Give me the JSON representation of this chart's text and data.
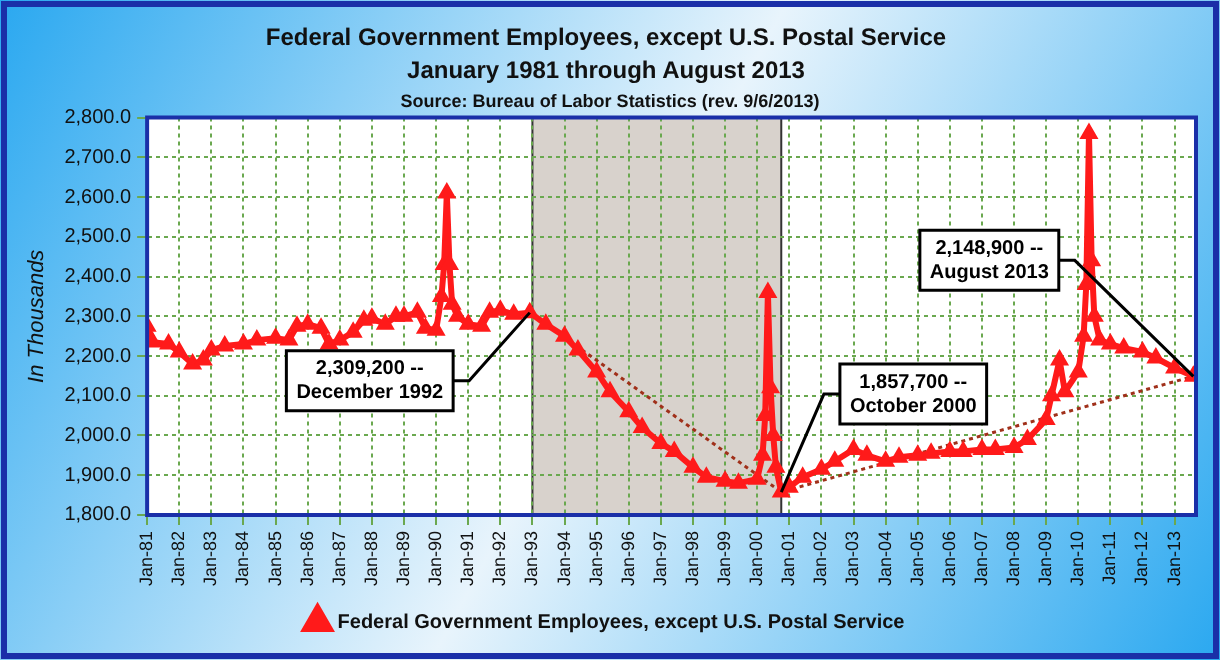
{
  "chart_data": {
    "type": "line",
    "title": "Federal Government Employees, except U.S. Postal Service",
    "subtitle": "January 1981 through August 2013",
    "ylabel": "In Thousands",
    "annotations": [
      "Source: Bureau of Labor Statistics (rev. 9/6/2013)",
      {
        "text": "2,309,200 --\nDecember 1992",
        "x": "1992-12",
        "y": 2309.2
      },
      {
        "text": "1,857,700 --\nOctober 2000",
        "x": "2000-10",
        "y": 1857.7
      },
      {
        "text": "2,148,900 --\nAugust 2013",
        "x": "2013-08",
        "y": 2148.9
      }
    ],
    "xlim": [
      "1981-01",
      "2013-09"
    ],
    "xticks": [
      {
        "value": "1981-01",
        "label": "Jan-81"
      },
      {
        "value": "1982-01",
        "label": "Jan-82"
      },
      {
        "value": "1983-01",
        "label": "Jan-83"
      },
      {
        "value": "1984-01",
        "label": "Jan-84"
      },
      {
        "value": "1985-01",
        "label": "Jan-85"
      },
      {
        "value": "1986-01",
        "label": "Jan-86"
      },
      {
        "value": "1987-01",
        "label": "Jan-87"
      },
      {
        "value": "1988-01",
        "label": "Jan-88"
      },
      {
        "value": "1989-01",
        "label": "Jan-89"
      },
      {
        "value": "1990-01",
        "label": "Jan-90"
      },
      {
        "value": "1991-01",
        "label": "Jan-91"
      },
      {
        "value": "1992-01",
        "label": "Jan-92"
      },
      {
        "value": "1993-01",
        "label": "Jan-93"
      },
      {
        "value": "1994-01",
        "label": "Jan-94"
      },
      {
        "value": "1995-01",
        "label": "Jan-95"
      },
      {
        "value": "1996-01",
        "label": "Jan-96"
      },
      {
        "value": "1997-01",
        "label": "Jan-97"
      },
      {
        "value": "1998-01",
        "label": "Jan-98"
      },
      {
        "value": "1999-01",
        "label": "Jan-99"
      },
      {
        "value": "2000-01",
        "label": "Jan-00"
      },
      {
        "value": "2001-01",
        "label": "Jan-01"
      },
      {
        "value": "2002-01",
        "label": "Jan-02"
      },
      {
        "value": "2003-01",
        "label": "Jan-03"
      },
      {
        "value": "2004-01",
        "label": "Jan-04"
      },
      {
        "value": "2005-01",
        "label": "Jan-05"
      },
      {
        "value": "2006-01",
        "label": "Jan-06"
      },
      {
        "value": "2007-01",
        "label": "Jan-07"
      },
      {
        "value": "2008-01",
        "label": "Jan-08"
      },
      {
        "value": "2009-01",
        "label": "Jan-09"
      },
      {
        "value": "2010-01",
        "label": "Jan-10"
      },
      {
        "value": "2011-01",
        "label": "Jan-11"
      },
      {
        "value": "2012-01",
        "label": "Jan-12"
      },
      {
        "value": "2013-01",
        "label": "Jan-13"
      }
    ],
    "ylim": [
      1800,
      2800
    ],
    "yticks": [
      {
        "value": 1800,
        "label": "1,800.0"
      },
      {
        "value": 1900,
        "label": "1,900.0"
      },
      {
        "value": 2000,
        "label": "2,000.0"
      },
      {
        "value": 2100,
        "label": "2,100.0"
      },
      {
        "value": 2200,
        "label": "2,200.0"
      },
      {
        "value": 2300,
        "label": "2,300.0"
      },
      {
        "value": 2400,
        "label": "2,400.0"
      },
      {
        "value": 2500,
        "label": "2,500.0"
      },
      {
        "value": 2600,
        "label": "2,600.0"
      },
      {
        "value": 2700,
        "label": "2,700.0"
      },
      {
        "value": 2800,
        "label": "2,800.0"
      }
    ],
    "grid": true,
    "legend": "bottom",
    "marker": "triangle",
    "line_style": "solid",
    "bands": [
      {
        "axis": "x",
        "from": "1993-01",
        "to": "2000-10",
        "color": "#d8d2cc"
      }
    ],
    "series": [
      {
        "name": "Federal Government Employees, except U.S. Postal Service",
        "color": "#ff1a1a",
        "x": [
          "1981-01",
          "1981-03",
          "1981-09",
          "1982-01",
          "1982-06",
          "1982-10",
          "1983-01",
          "1983-06",
          "1984-01",
          "1984-06",
          "1985-01",
          "1985-06",
          "1985-09",
          "1986-01",
          "1986-06",
          "1986-09",
          "1987-01",
          "1987-06",
          "1987-10",
          "1988-01",
          "1988-06",
          "1988-10",
          "1989-01",
          "1989-06",
          "1989-09",
          "1990-01",
          "1990-03",
          "1990-04",
          "1990-05",
          "1990-06",
          "1990-07",
          "1990-09",
          "1991-01",
          "1991-06",
          "1991-09",
          "1992-01",
          "1992-06",
          "1992-12",
          "1993-06",
          "1994-01",
          "1994-06",
          "1995-01",
          "1995-06",
          "1996-01",
          "1996-06",
          "1997-01",
          "1997-06",
          "1998-01",
          "1998-06",
          "1999-01",
          "1999-06",
          "2000-01",
          "2000-03",
          "2000-04",
          "2000-05",
          "2000-06",
          "2000-07",
          "2000-08",
          "2000-10",
          "2001-01",
          "2001-06",
          "2002-01",
          "2002-06",
          "2003-01",
          "2003-06",
          "2004-01",
          "2004-06",
          "2005-01",
          "2005-06",
          "2006-01",
          "2006-06",
          "2007-01",
          "2007-06",
          "2008-01",
          "2008-06",
          "2009-01",
          "2009-03",
          "2009-06",
          "2009-08",
          "2010-01",
          "2010-03",
          "2010-04",
          "2010-05",
          "2010-06",
          "2010-07",
          "2010-09",
          "2011-01",
          "2011-06",
          "2012-01",
          "2012-06",
          "2013-01",
          "2013-08"
        ],
        "values": [
          2275,
          2235,
          2230,
          2210,
          2180,
          2190,
          2215,
          2225,
          2230,
          2240,
          2245,
          2240,
          2275,
          2280,
          2270,
          2230,
          2240,
          2260,
          2290,
          2295,
          2280,
          2300,
          2300,
          2310,
          2270,
          2265,
          2350,
          2430,
          2610,
          2430,
          2330,
          2300,
          2280,
          2275,
          2310,
          2315,
          2305,
          2309.2,
          2280,
          2250,
          2215,
          2160,
          2110,
          2060,
          2020,
          1980,
          1960,
          1920,
          1895,
          1885,
          1880,
          1890,
          1950,
          2050,
          2360,
          2120,
          2000,
          1920,
          1857.7,
          1870,
          1895,
          1915,
          1935,
          1965,
          1950,
          1935,
          1945,
          1950,
          1955,
          1960,
          1960,
          1965,
          1965,
          1970,
          1990,
          2040,
          2100,
          2190,
          2110,
          2160,
          2250,
          2380,
          2760,
          2440,
          2300,
          2240,
          2230,
          2220,
          2210,
          2195,
          2170,
          2148.9
        ]
      },
      {
        "type": "line",
        "color": "#a0301a",
        "line_style": "dotted",
        "marker": "none",
        "x": [
          "1992-12",
          "2000-10",
          "2013-08"
        ],
        "values": [
          2309.2,
          1857.7,
          2148.9
        ]
      }
    ]
  }
}
